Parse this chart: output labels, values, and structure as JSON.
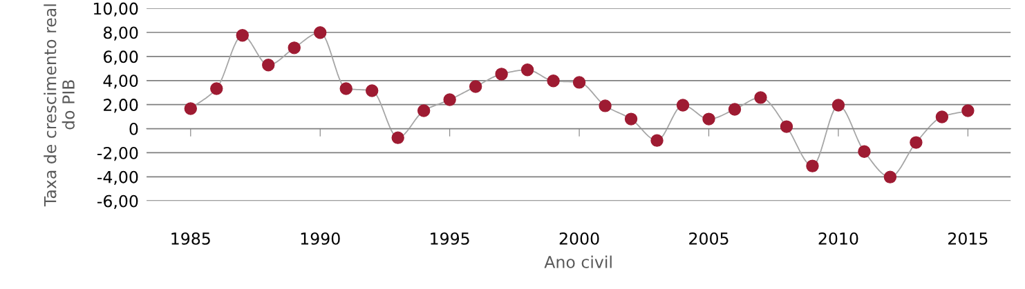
{
  "chart_data": {
    "type": "line",
    "xlabel": "Ano civil",
    "ylabel": "Taxa de crescimento real\ndo PIB",
    "x": [
      1985,
      1986,
      1987,
      1988,
      1989,
      1990,
      1991,
      1992,
      1993,
      1994,
      1995,
      1996,
      1997,
      1998,
      1999,
      2000,
      2001,
      2002,
      2003,
      2004,
      2005,
      2006,
      2007,
      2008,
      2009,
      2010,
      2011,
      2012,
      2013,
      2014,
      2015
    ],
    "series": [
      {
        "color": "#a6a6a6",
        "colors": [
          "#9e1b32",
          "#9e1b32",
          "#9e1b32",
          "#9e1b32",
          "#9e1b32",
          "#9e1b32",
          "#9e1b32",
          "#9e1b32",
          "#9e1b32",
          "#9e1b32",
          "#9e1b32",
          "#9e1b32",
          "#9e1b32",
          "#9e1b32",
          "#9e1b32",
          "#9e1b32",
          "#9e1b32",
          "#9e1b32",
          "#9e1b32",
          "#9e1b32",
          "#9e1b32",
          "#9e1b32",
          "#9e1b32",
          "#9e1b32",
          "#9e1b32",
          "#9e1b32",
          "#9e1b32",
          "#9e1b32",
          "#9e1b32",
          "#9e1b32",
          "#9e1b32"
        ],
        "values": [
          1.67,
          3.33,
          7.76,
          5.29,
          6.72,
          7.99,
          3.33,
          3.16,
          -0.75,
          1.49,
          2.41,
          3.5,
          4.54,
          4.89,
          3.97,
          3.85,
          1.9,
          0.8,
          -0.98,
          1.95,
          0.8,
          1.61,
          2.59,
          0.17,
          -3.1,
          1.95,
          -1.9,
          -4.02,
          -1.15,
          0.98,
          1.49
        ]
      }
    ],
    "xlim": [
      1983.3,
      2016.65
    ],
    "xticks": [
      1985,
      1990,
      1995,
      2000,
      2005,
      2010,
      2015
    ],
    "ylim": [
      -6,
      10
    ],
    "yticks": [
      {
        "value": -6,
        "label": "-6,00"
      },
      {
        "value": -4,
        "label": "-4,00"
      },
      {
        "value": -2,
        "label": "-2,00"
      },
      {
        "value": 0,
        "label": "0"
      },
      {
        "value": 2,
        "label": "2,00"
      },
      {
        "value": 4,
        "label": "4,00"
      },
      {
        "value": 6,
        "label": "6,00"
      },
      {
        "value": 8,
        "label": "8,00"
      },
      {
        "value": 10,
        "label": "10,00"
      }
    ],
    "grid": "y",
    "marker": "circle",
    "line_style": "solid",
    "legend": false
  }
}
